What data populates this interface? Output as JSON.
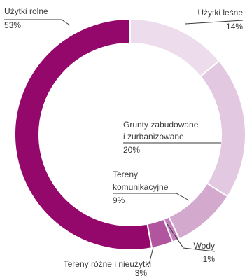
{
  "chart_data": {
    "type": "pie",
    "title": "",
    "categories": [
      "Użytki leśne",
      "Grunty zabudowane i zurbanizowane",
      "Tereny komunikacyjne",
      "Wody",
      "Tereny różne i nieużytki",
      "Użytki rolne"
    ],
    "values": [
      14,
      20,
      9,
      1,
      3,
      53
    ],
    "value_labels": [
      "14%",
      "20%",
      "9%",
      "1%",
      "3%",
      "53%"
    ],
    "colors": [
      "#ecdcec",
      "#e2c8e0",
      "#d3a9cd",
      "#c37ebc",
      "#b0559e",
      "#94086b"
    ],
    "style": "donut",
    "legend": "none"
  }
}
